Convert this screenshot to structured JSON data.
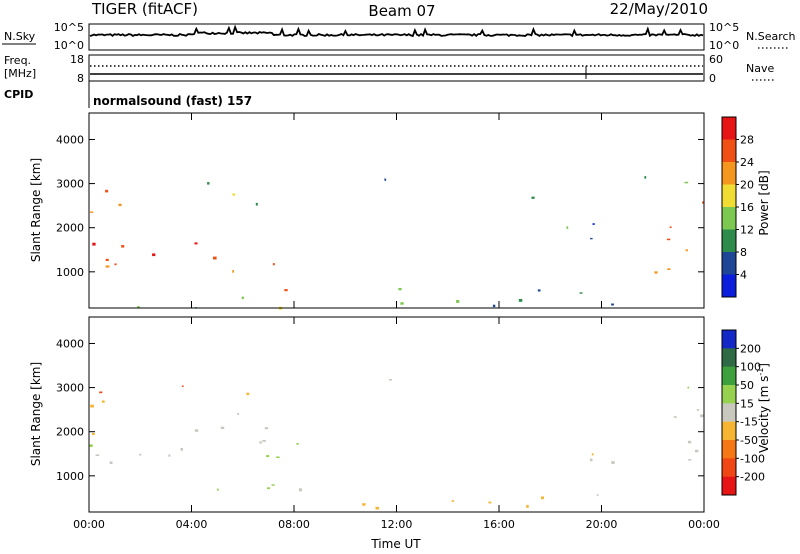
{
  "header": {
    "radar": "TIGER (fitACF)",
    "beam": "Beam 07",
    "date": "22/May/2010"
  },
  "top_panels": {
    "nsky_label": "N.Sky",
    "nsearch_label": "N.Search",
    "nsky_ticks": [
      "10^5",
      "10^0"
    ],
    "freq_label": "Freq.",
    "freq_unit": "[MHz]",
    "freq_ticks": [
      "18",
      "8"
    ],
    "nave_label": "Nave",
    "nave_ticks": [
      "60",
      "0"
    ],
    "cpid_label": "CPID",
    "cpid_value": "normalsound (fast) 157"
  },
  "chart_data": [
    {
      "type": "heatmap",
      "name": "power",
      "xlabel": "",
      "ylabel": "Slant Range [km]",
      "x_range": [
        "00:00",
        "24:00"
      ],
      "ylim": [
        180,
        4600
      ],
      "y_ticks": [
        1000,
        2000,
        3000,
        4000
      ],
      "colorbar": {
        "label": "Power [dB]",
        "ticks": [
          4,
          8,
          12,
          16,
          20,
          24,
          28
        ],
        "range": [
          0,
          32
        ],
        "colors": [
          "#0a1edc",
          "#1e4696",
          "#2d8c4b",
          "#7dc850",
          "#f0dc32",
          "#f5961e",
          "#f05014",
          "#e61414"
        ]
      },
      "echo_regions": [
        {
          "t0": 0.0,
          "t1": 8.9,
          "r0": 1000,
          "r1": 1800,
          "level": 26
        },
        {
          "t0": 0.0,
          "t1": 4.0,
          "r0": 2300,
          "r1": 2900,
          "level": 20
        },
        {
          "t0": 4.0,
          "t1": 7.8,
          "r0": 2500,
          "r1": 3100,
          "level": 14
        },
        {
          "t0": 6.3,
          "t1": 8.9,
          "r0": 600,
          "r1": 1200,
          "level": 26
        },
        {
          "t0": 0.0,
          "t1": 8.9,
          "r0": 200,
          "r1": 550,
          "level": 12
        },
        {
          "t0": 8.9,
          "t1": 22.2,
          "r0": 200,
          "r1": 650,
          "level": 10
        },
        {
          "t0": 11.2,
          "t1": 12.3,
          "r0": 2850,
          "r1": 3200,
          "level": 6
        },
        {
          "t0": 15.6,
          "t1": 17.4,
          "r0": 2700,
          "r1": 3200,
          "level": 6
        },
        {
          "t0": 17.6,
          "t1": 18.8,
          "r0": 1300,
          "r1": 2100,
          "level": 10
        },
        {
          "t0": 19.1,
          "t1": 20.6,
          "r0": 1400,
          "r1": 2400,
          "level": 8
        },
        {
          "t0": 21.6,
          "t1": 24.0,
          "r0": 1000,
          "r1": 2800,
          "level": 24
        },
        {
          "t0": 21.6,
          "t1": 24.0,
          "r0": 2700,
          "r1": 3200,
          "level": 14
        }
      ]
    },
    {
      "type": "heatmap",
      "name": "velocity",
      "xlabel": "Time UT",
      "ylabel": "Slant Range [km]",
      "x_ticks": [
        "00:00",
        "04:00",
        "08:00",
        "12:00",
        "16:00",
        "20:00",
        "00:00"
      ],
      "ylim": [
        180,
        4600
      ],
      "y_ticks": [
        1000,
        2000,
        3000,
        4000
      ],
      "colorbar": {
        "label": "Velocity [m s-1]",
        "ticks": [
          200,
          100,
          50,
          15,
          -15,
          -50,
          -100,
          -200
        ],
        "colors": [
          "#1428c8",
          "#2e6b44",
          "#3ca03c",
          "#96d250",
          "#c8c8be",
          "#f5b432",
          "#f57814",
          "#f04614",
          "#e61414"
        ]
      },
      "echo_regions": [
        {
          "t0": 0.0,
          "t1": 8.0,
          "r0": 1300,
          "r1": 2500,
          "level": 0
        },
        {
          "t0": 0.0,
          "t1": 4.0,
          "r0": 2900,
          "r1": 3300,
          "level": -150
        },
        {
          "t0": 0.0,
          "t1": 7.5,
          "r0": 2600,
          "r1": 2900,
          "level": -40
        },
        {
          "t0": 4.0,
          "t1": 8.9,
          "r0": 700,
          "r1": 1900,
          "level": 30
        },
        {
          "t0": 8.9,
          "t1": 22.2,
          "r0": 200,
          "r1": 600,
          "level": -30
        },
        {
          "t0": 18.0,
          "t1": 20.5,
          "r0": 1300,
          "r1": 2100,
          "level": 0
        },
        {
          "t0": 21.6,
          "t1": 24.0,
          "r0": 1200,
          "r1": 3000,
          "level": 0
        },
        {
          "t0": 21.6,
          "t1": 24.0,
          "r0": 2900,
          "r1": 3200,
          "level": 60
        },
        {
          "t0": 11.2,
          "t1": 12.3,
          "r0": 2850,
          "r1": 3200,
          "level": 0
        }
      ]
    }
  ]
}
